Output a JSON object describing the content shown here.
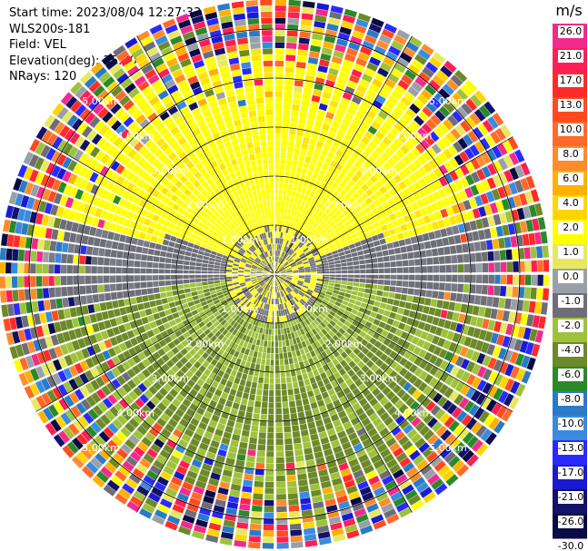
{
  "header": {
    "start_time": "Start time: 2023/08/04 12:27:33",
    "instrument": "WLS200s-181",
    "field": "Field: VEL",
    "elevation": "Elevation(deg): 35.30",
    "nrays": "NRays: 120"
  },
  "ppi": {
    "center_color": "#ffffff",
    "range_ring_labels_km": [
      "1.00km",
      "2.00km",
      "3.00km",
      "4.00km",
      "5.00km"
    ],
    "nrays": 120
  },
  "colorbar": {
    "unit": "m/s",
    "ticks": [
      "26.0",
      "21.0",
      "17.0",
      "13.0",
      "10.0",
      "8.0",
      "6.0",
      "4.0",
      "2.0",
      "1.0",
      "0.0",
      "-1.0",
      "-2.0",
      "-4.0",
      "-6.0",
      "-8.0",
      "-10.0",
      "-13.0",
      "-17.0",
      "-21.0",
      "-26.0",
      "-30.0"
    ],
    "colors": [
      "#f22a8c",
      "#ff1f55",
      "#ff2a2a",
      "#ff4b1f",
      "#ff6a2a",
      "#ff8c2a",
      "#ffb000",
      "#ffd500",
      "#ffff00",
      "#e8e860",
      "#9aa0a8",
      "#6e6e78",
      "#9ec23a",
      "#6c8a28",
      "#2a8a2a",
      "#2a7ac8",
      "#3a8ae0",
      "#2a2aff",
      "#1a1ad0",
      "#12126a",
      "#0a0a44"
    ]
  }
}
